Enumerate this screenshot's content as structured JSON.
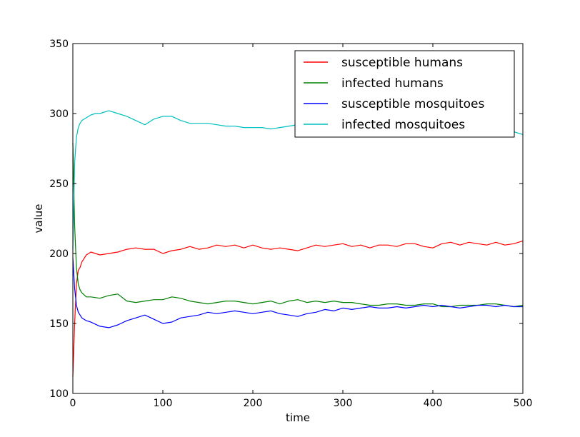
{
  "chart_data": {
    "type": "line",
    "xlabel": "time",
    "ylabel": "value",
    "xlim": [
      0,
      500
    ],
    "ylim": [
      100,
      350
    ],
    "xticks": [
      "0",
      "100",
      "200",
      "300",
      "400",
      "500"
    ],
    "yticks": [
      "100",
      "150",
      "200",
      "250",
      "300",
      "350"
    ],
    "grid": false,
    "legend_position": "top-right",
    "series": [
      {
        "name": "susceptible humans",
        "color": "#ff0000",
        "x": [
          0,
          2,
          4,
          6,
          8,
          10,
          15,
          20,
          30,
          40,
          50,
          60,
          70,
          80,
          90,
          100,
          110,
          120,
          130,
          140,
          150,
          160,
          170,
          180,
          190,
          200,
          210,
          220,
          230,
          240,
          250,
          260,
          270,
          280,
          290,
          300,
          310,
          320,
          330,
          340,
          350,
          360,
          370,
          380,
          390,
          400,
          410,
          420,
          430,
          440,
          450,
          460,
          470,
          480,
          490,
          500
        ],
        "y": [
          112,
          150,
          178,
          188,
          190,
          194,
          199,
          201,
          199,
          200,
          201,
          203,
          204,
          203,
          203,
          200,
          202,
          203,
          205,
          203,
          204,
          206,
          205,
          206,
          204,
          206,
          204,
          203,
          204,
          203,
          202,
          204,
          206,
          205,
          206,
          207,
          205,
          206,
          204,
          206,
          206,
          205,
          207,
          207,
          205,
          204,
          207,
          208,
          206,
          208,
          207,
          206,
          208,
          206,
          207,
          209
        ]
      },
      {
        "name": "infected humans",
        "color": "#008000",
        "x": [
          0,
          2,
          4,
          6,
          8,
          10,
          15,
          20,
          30,
          40,
          50,
          60,
          70,
          80,
          90,
          100,
          110,
          120,
          130,
          140,
          150,
          160,
          170,
          180,
          190,
          200,
          210,
          220,
          230,
          240,
          250,
          260,
          270,
          280,
          290,
          300,
          310,
          320,
          330,
          340,
          350,
          360,
          370,
          380,
          390,
          400,
          410,
          420,
          430,
          440,
          450,
          460,
          470,
          480,
          490,
          500
        ],
        "y": [
          279,
          220,
          190,
          178,
          174,
          172,
          169,
          169,
          168,
          170,
          171,
          166,
          165,
          166,
          167,
          167,
          169,
          168,
          166,
          165,
          164,
          165,
          166,
          166,
          165,
          164,
          165,
          166,
          164,
          166,
          167,
          165,
          166,
          165,
          166,
          165,
          165,
          164,
          163,
          163,
          164,
          164,
          163,
          163,
          164,
          164,
          162,
          162,
          163,
          163,
          163,
          164,
          164,
          163,
          162,
          163
        ]
      },
      {
        "name": "susceptible mosquitoes",
        "color": "#0000ff",
        "x": [
          0,
          2,
          4,
          6,
          8,
          10,
          15,
          20,
          30,
          40,
          50,
          60,
          70,
          80,
          90,
          100,
          110,
          120,
          130,
          140,
          150,
          160,
          170,
          180,
          190,
          200,
          210,
          220,
          230,
          240,
          250,
          260,
          270,
          280,
          290,
          300,
          310,
          320,
          330,
          340,
          350,
          360,
          370,
          380,
          390,
          400,
          410,
          420,
          430,
          440,
          450,
          460,
          470,
          480,
          490,
          500
        ],
        "y": [
          197,
          175,
          163,
          158,
          156,
          154,
          152,
          151,
          148,
          147,
          149,
          152,
          154,
          156,
          153,
          150,
          151,
          154,
          155,
          156,
          158,
          157,
          158,
          159,
          158,
          157,
          158,
          159,
          157,
          156,
          155,
          157,
          158,
          160,
          159,
          161,
          160,
          161,
          162,
          161,
          161,
          162,
          161,
          162,
          163,
          162,
          163,
          162,
          161,
          162,
          163,
          163,
          162,
          163,
          162,
          162
        ]
      },
      {
        "name": "infected mosquitoes",
        "color": "#00bfbf",
        "x": [
          0,
          2,
          4,
          6,
          8,
          10,
          15,
          20,
          25,
          30,
          35,
          40,
          45,
          50,
          60,
          70,
          80,
          90,
          100,
          110,
          120,
          130,
          140,
          150,
          160,
          170,
          180,
          190,
          200,
          210,
          220,
          230,
          240,
          250,
          260,
          270,
          280,
          290,
          300,
          310,
          320,
          330,
          340,
          350,
          360,
          370,
          380,
          390,
          400,
          410,
          420,
          430,
          440,
          450,
          460,
          470,
          480,
          490,
          500
        ],
        "y": [
          203,
          265,
          283,
          290,
          293,
          295,
          297,
          299,
          300,
          300,
          301,
          302,
          301,
          300,
          298,
          295,
          292,
          296,
          298,
          298,
          295,
          293,
          293,
          293,
          292,
          291,
          291,
          290,
          290,
          290,
          289,
          290,
          291,
          292,
          291,
          292,
          291,
          292,
          291,
          292,
          291,
          290,
          291,
          292,
          290,
          291,
          290,
          291,
          290,
          289,
          290,
          289,
          290,
          289,
          289,
          288,
          287,
          287,
          285
        ]
      }
    ]
  }
}
